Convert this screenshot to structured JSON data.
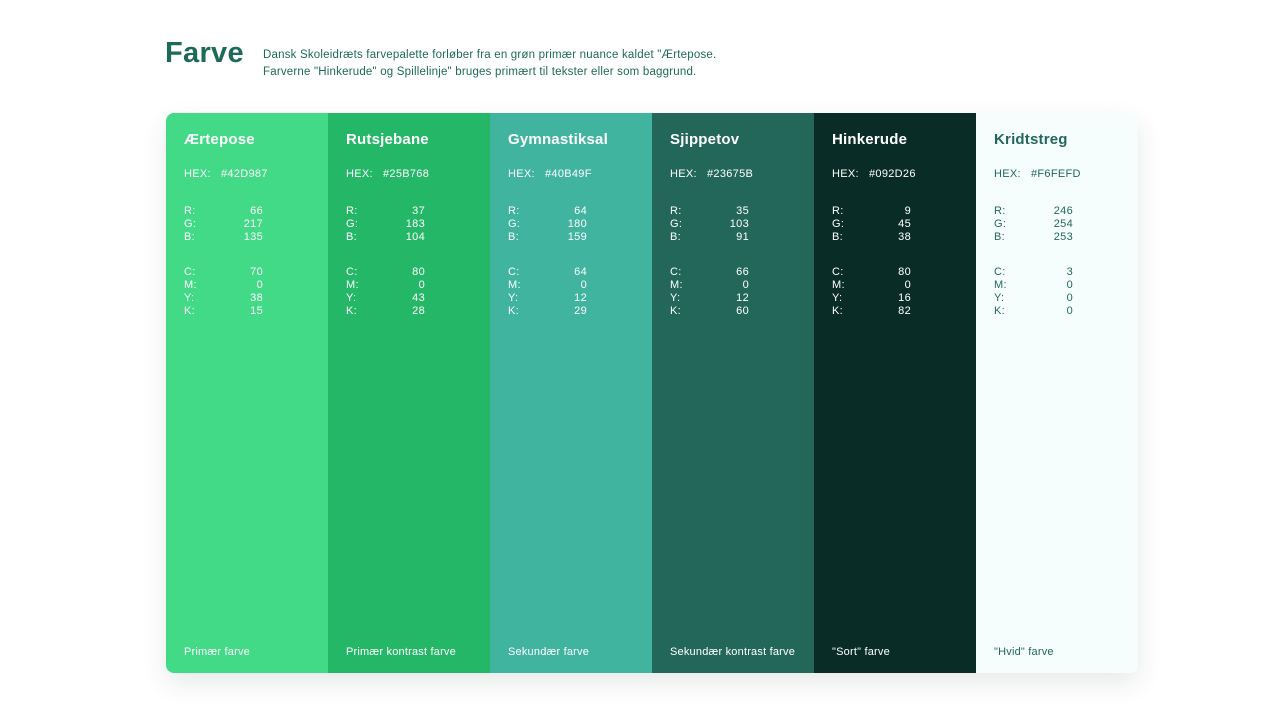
{
  "page": {
    "title": "Farve",
    "description": {
      "line1": "Dansk Skoleidræts farvepalette forløber fra en grøn primær nuance kaldet \"Ærtepose.",
      "line2": "Farverne \"Hinkerude\" og Spillelinje\" bruges primært til tekster eller som baggrund."
    },
    "text_color": "#1E6A58",
    "background_color": "#FFFFFF"
  },
  "palette": {
    "labels": {
      "hex": "HEX:",
      "r": "R:",
      "g": "G:",
      "b": "B:",
      "c": "C:",
      "m": "M:",
      "y": "Y:",
      "k": "K:"
    },
    "swatches": [
      {
        "name": "Ærtepose",
        "hex": "#42D987",
        "r": 66,
        "g": 217,
        "b": 135,
        "c": 70,
        "m": 0,
        "y": 38,
        "k": 15,
        "caption": "Primær farve",
        "text_color": "#FFFFFF"
      },
      {
        "name": "Rutsjebane",
        "hex": "#25B768",
        "r": 37,
        "g": 183,
        "b": 104,
        "c": 80,
        "m": 0,
        "y": 43,
        "k": 28,
        "caption": "Primær kontrast farve",
        "text_color": "#FFFFFF"
      },
      {
        "name": "Gymnastiksal",
        "hex": "#40B49F",
        "r": 64,
        "g": 180,
        "b": 159,
        "c": 64,
        "m": 0,
        "y": 12,
        "k": 29,
        "caption": "Sekundær farve",
        "text_color": "#FFFFFF"
      },
      {
        "name": "Sjippetov",
        "hex": "#23675B",
        "r": 35,
        "g": 103,
        "b": 91,
        "c": 66,
        "m": 0,
        "y": 12,
        "k": 60,
        "caption": "Sekundær kontrast farve",
        "text_color": "#FFFFFF"
      },
      {
        "name": "Hinkerude",
        "hex": "#092D26",
        "r": 9,
        "g": 45,
        "b": 38,
        "c": 80,
        "m": 0,
        "y": 16,
        "k": 82,
        "caption": "\"Sort\" farve",
        "text_color": "#FFFFFF"
      },
      {
        "name": "Kridtstreg",
        "hex": "#F6FEFD",
        "r": 246,
        "g": 254,
        "b": 253,
        "c": 3,
        "m": 0,
        "y": 0,
        "k": 0,
        "caption": "\"Hvid\" farve",
        "text_color": "#23675B"
      }
    ]
  }
}
